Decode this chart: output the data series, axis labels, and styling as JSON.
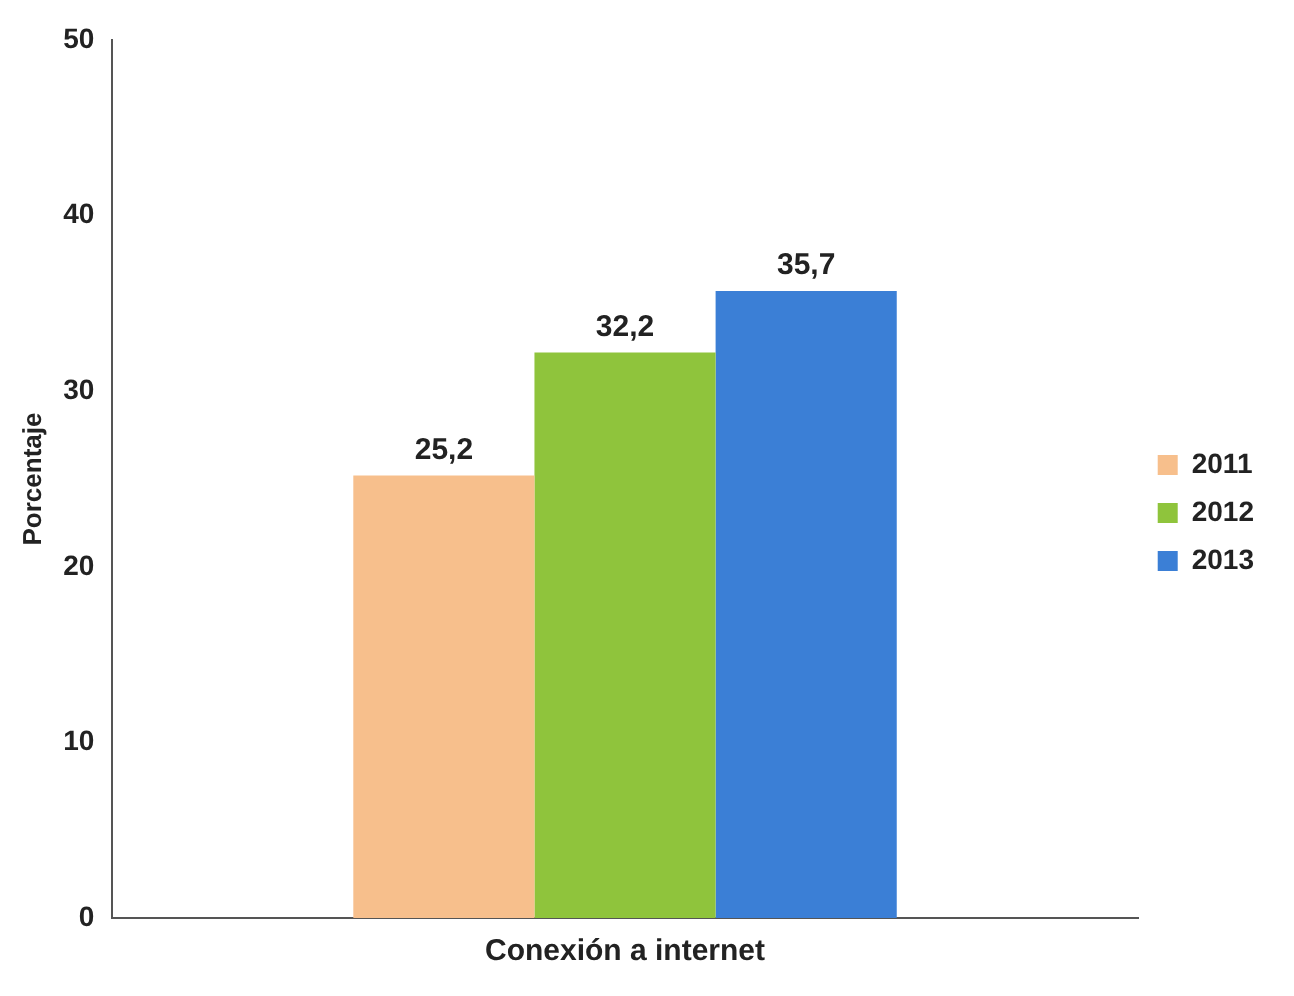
{
  "chart_data": {
    "type": "bar",
    "ylabel": "Porcentaje",
    "categories": [
      "Conexión a internet"
    ],
    "series": [
      {
        "name": "2011",
        "color": "#f7bf8c",
        "values": [
          25.2
        ],
        "value_labels": [
          "25,2"
        ]
      },
      {
        "name": "2012",
        "color": "#8fc43c",
        "values": [
          32.2
        ],
        "value_labels": [
          "32,2"
        ]
      },
      {
        "name": "2013",
        "color": "#3b7fd6",
        "values": [
          35.7
        ],
        "value_labels": [
          "35,7"
        ]
      }
    ],
    "ylim": [
      0,
      50
    ],
    "yticks": [
      0,
      10,
      20,
      30,
      40,
      50
    ],
    "grid": false,
    "legend": "right"
  }
}
